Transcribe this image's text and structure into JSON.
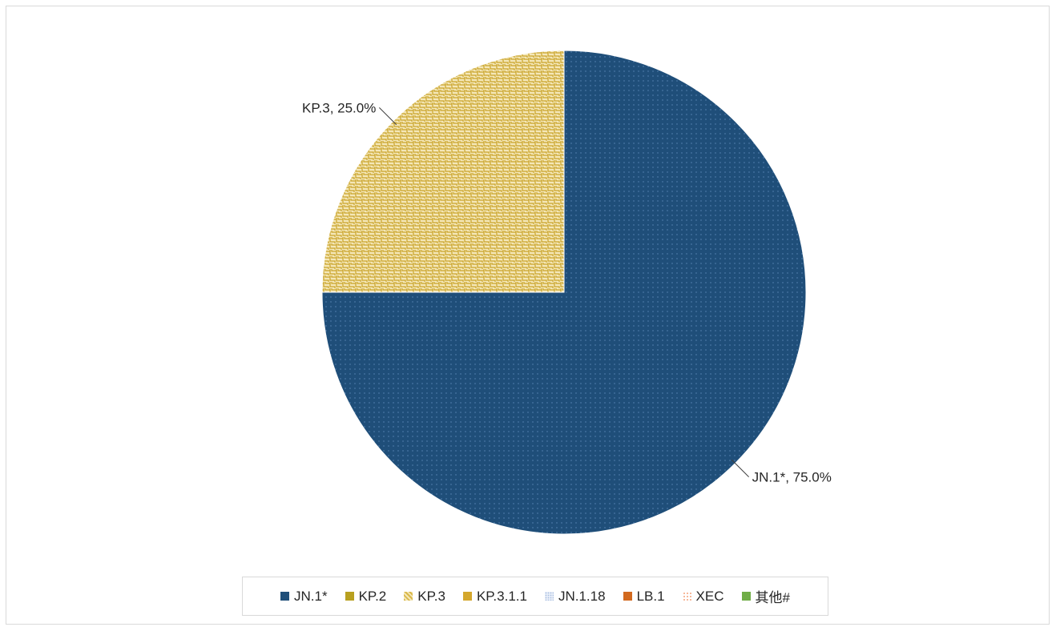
{
  "chart_data": {
    "type": "pie",
    "title": "",
    "start_angle_deg": 0,
    "direction": "clockwise",
    "slices": [
      {
        "label": "JN.1*",
        "value": 75.0,
        "data_label": "JN.1*, 75.0%",
        "color": "#1f4e79",
        "pattern": "dots-light"
      },
      {
        "label": "KP.3",
        "value": 25.0,
        "data_label": "KP.3, 25.0%",
        "color": "#c9a227",
        "pattern": "weave",
        "background": "#f4e7b8"
      }
    ],
    "legend": {
      "position": "bottom",
      "entries": [
        {
          "label": "JN.1*",
          "color": "#1f4e79",
          "pattern": "solid"
        },
        {
          "label": "KP.2",
          "color": "#b8a020",
          "pattern": "solid"
        },
        {
          "label": "KP.3",
          "color": "#d9b84a",
          "pattern": "weave"
        },
        {
          "label": "KP.3.1.1",
          "color": "#d4a72c",
          "pattern": "solid"
        },
        {
          "label": "JN.1.18",
          "color": "#a9bfe0",
          "pattern": "dots"
        },
        {
          "label": "LB.1",
          "color": "#d2691e",
          "pattern": "solid"
        },
        {
          "label": "XEC",
          "color": "#f4a27a",
          "pattern": "sparse-dots"
        },
        {
          "label": "其他#",
          "color": "#70ad47",
          "pattern": "solid"
        }
      ]
    }
  }
}
